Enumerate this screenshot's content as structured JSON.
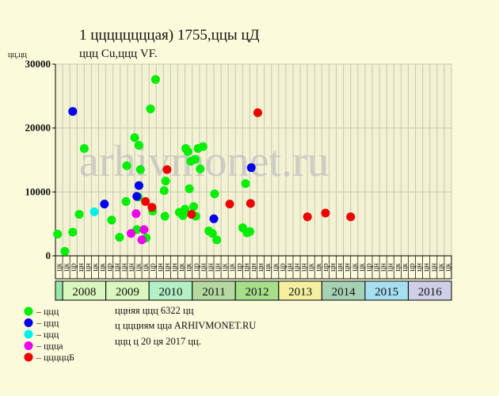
{
  "title": "1 ццццццццая) 1755,ццы цД",
  "subtitle": "ццц Cu,ццц VF.",
  "watermark": "arhivmonet.ru",
  "chart_data": {
    "type": "scatter",
    "y_unit_label": "цц,цц",
    "ylim": [
      0,
      30000
    ],
    "yticks": [
      0,
      10000,
      20000,
      30000
    ],
    "ytick_labels": [
      "0",
      "10000",
      "20000",
      "30000"
    ],
    "years": [
      {
        "label": "",
        "start": 0,
        "end": 1,
        "color": "#99e6aa"
      },
      {
        "label": "2008",
        "start": 1,
        "end": 7,
        "color": "#d9f7bf"
      },
      {
        "label": "2009",
        "start": 7,
        "end": 13,
        "color": "#d9f7bf"
      },
      {
        "label": "2010",
        "start": 13,
        "end": 19,
        "color": "#b3f0c6"
      },
      {
        "label": "2011",
        "start": 19,
        "end": 25,
        "color": "#b5d9a0"
      },
      {
        "label": "2012",
        "start": 25,
        "end": 31,
        "color": "#a6de8a"
      },
      {
        "label": "2013",
        "start": 31,
        "end": 37,
        "color": "#f5f0a0"
      },
      {
        "label": "2014",
        "start": 37,
        "end": 43,
        "color": "#a6d1b3"
      },
      {
        "label": "2015",
        "start": 43,
        "end": 49,
        "color": "#a6dff0"
      },
      {
        "label": "2016",
        "start": 49,
        "end": 55,
        "color": "#cfcfe8"
      }
    ],
    "column_labels": [
      "цк",
      "цк",
      "цр",
      "цн",
      "цн",
      "цк",
      "цк",
      "цр",
      "цн",
      "цн",
      "цн",
      "цк",
      "цк",
      "цр",
      "цн",
      "цн",
      "цн",
      "цк",
      "цк",
      "цр",
      "цн",
      "цн",
      "цн",
      "цк",
      "цк",
      "цр",
      "цн",
      "цн",
      "цн",
      "цк",
      "цк",
      "цр",
      "цн",
      "цн",
      "цн",
      "цк",
      "цк",
      "цр",
      "цн",
      "цн",
      "цн",
      "цк",
      "цк",
      "цр",
      "цн",
      "цн",
      "цн",
      "цк",
      "цк",
      "цр",
      "цн",
      "цн",
      "цн",
      "цк",
      "цк"
    ],
    "series": [
      {
        "name": "ццц",
        "color": "#00ee00",
        "points": [
          {
            "x": 0.3,
            "y": 3400
          },
          {
            "x": 1.3,
            "y": 700
          },
          {
            "x": 2.4,
            "y": 3700
          },
          {
            "x": 3.3,
            "y": 6500
          },
          {
            "x": 4.0,
            "y": 16800
          },
          {
            "x": 7.8,
            "y": 5600
          },
          {
            "x": 8.9,
            "y": 2900
          },
          {
            "x": 9.8,
            "y": 8500
          },
          {
            "x": 9.9,
            "y": 14100
          },
          {
            "x": 11.0,
            "y": 18500
          },
          {
            "x": 11.3,
            "y": 4100
          },
          {
            "x": 11.6,
            "y": 17300
          },
          {
            "x": 11.8,
            "y": 13500
          },
          {
            "x": 11.5,
            "y": 9200
          },
          {
            "x": 12.6,
            "y": 2800
          },
          {
            "x": 13.2,
            "y": 23000
          },
          {
            "x": 13.5,
            "y": 7000
          },
          {
            "x": 13.9,
            "y": 27600
          },
          {
            "x": 15.1,
            "y": 10200
          },
          {
            "x": 15.3,
            "y": 11700
          },
          {
            "x": 15.2,
            "y": 6200
          },
          {
            "x": 17.2,
            "y": 6800
          },
          {
            "x": 17.7,
            "y": 6300
          },
          {
            "x": 18.0,
            "y": 7300
          },
          {
            "x": 18.1,
            "y": 16800
          },
          {
            "x": 18.4,
            "y": 16300
          },
          {
            "x": 18.6,
            "y": 10500
          },
          {
            "x": 18.8,
            "y": 14800
          },
          {
            "x": 19.4,
            "y": 15100
          },
          {
            "x": 19.2,
            "y": 7700
          },
          {
            "x": 19.5,
            "y": 6200
          },
          {
            "x": 19.8,
            "y": 16800
          },
          {
            "x": 20.1,
            "y": 13600
          },
          {
            "x": 20.5,
            "y": 17100
          },
          {
            "x": 21.3,
            "y": 3900
          },
          {
            "x": 21.8,
            "y": 3500
          },
          {
            "x": 22.1,
            "y": 9700
          },
          {
            "x": 22.4,
            "y": 2500
          },
          {
            "x": 26.0,
            "y": 4400
          },
          {
            "x": 26.4,
            "y": 11300
          },
          {
            "x": 26.6,
            "y": 3600
          },
          {
            "x": 27.0,
            "y": 3800
          }
        ]
      },
      {
        "name": "ццц",
        "color": "#0000ee",
        "points": [
          {
            "x": 2.4,
            "y": 22600
          },
          {
            "x": 6.8,
            "y": 8100
          },
          {
            "x": 11.3,
            "y": 9300
          },
          {
            "x": 11.6,
            "y": 11000
          },
          {
            "x": 22.0,
            "y": 5800
          },
          {
            "x": 27.2,
            "y": 13800
          }
        ]
      },
      {
        "name": "ццц",
        "color": "#00eeee",
        "points": [
          {
            "x": 5.4,
            "y": 6900
          }
        ]
      },
      {
        "name": "цццa",
        "color": "#ee00ee",
        "points": [
          {
            "x": 10.5,
            "y": 3500
          },
          {
            "x": 11.2,
            "y": 6600
          },
          {
            "x": 12.0,
            "y": 2500
          },
          {
            "x": 12.3,
            "y": 4100
          }
        ]
      },
      {
        "name": "цццццБ",
        "color": "#ee0000",
        "points": [
          {
            "x": 12.5,
            "y": 8500
          },
          {
            "x": 13.4,
            "y": 7600
          },
          {
            "x": 15.5,
            "y": 13500
          },
          {
            "x": 18.9,
            "y": 6500
          },
          {
            "x": 24.2,
            "y": 8100
          },
          {
            "x": 27.1,
            "y": 8200
          },
          {
            "x": 28.1,
            "y": 22400
          },
          {
            "x": 35.0,
            "y": 6100
          },
          {
            "x": 37.5,
            "y": 6700
          },
          {
            "x": 41.0,
            "y": 6100
          }
        ]
      }
    ]
  },
  "info_lines": [
    "ццняя ццц 6322 цц",
    "ц ццциям ццa ARHIVMONET.RU",
    "ццц ц 20 ця 2017 цц."
  ]
}
